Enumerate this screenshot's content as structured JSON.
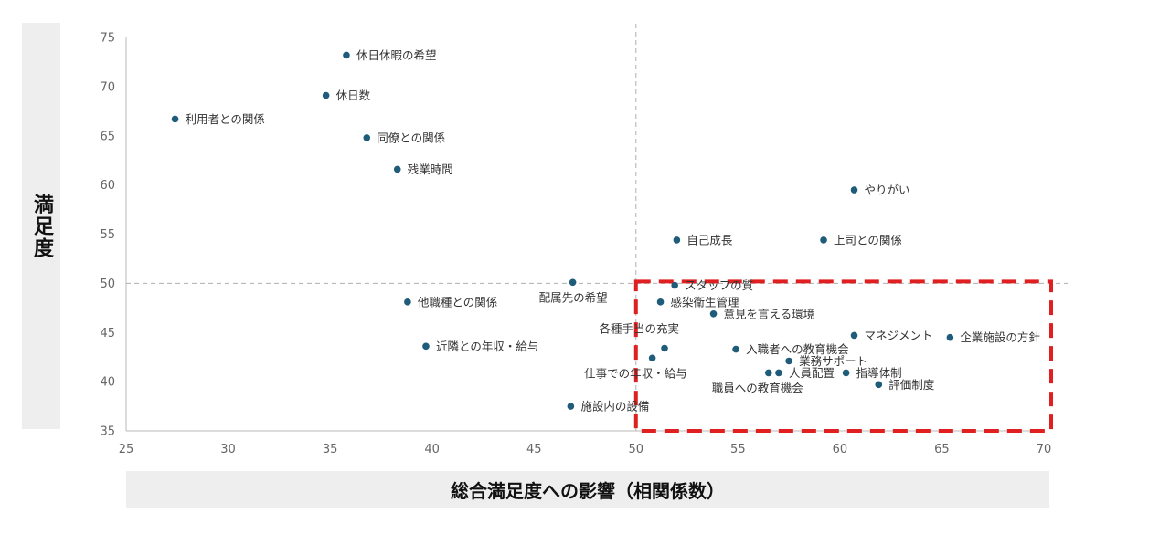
{
  "chart_data": {
    "type": "scatter",
    "title": "",
    "xlabel": "総合満足度への影響（相関係数）",
    "ylabel": "満足度",
    "xlim": [
      25,
      70
    ],
    "ylim": [
      35,
      75
    ],
    "xticks": [
      25,
      30,
      35,
      40,
      45,
      50,
      55,
      60,
      65,
      70
    ],
    "yticks": [
      35,
      40,
      45,
      50,
      55,
      60,
      65,
      70,
      75
    ],
    "reference_lines": {
      "x": 50,
      "y": 50
    },
    "highlight_region": {
      "x": [
        50,
        70
      ],
      "y": [
        35,
        50
      ],
      "color": "#e02020"
    },
    "marker_color": "#1f5c7a",
    "points": [
      {
        "label": "休日休暇の希望",
        "x": 35.8,
        "y": 73.2,
        "anchor": "right"
      },
      {
        "label": "休日数",
        "x": 34.8,
        "y": 69.1,
        "anchor": "right"
      },
      {
        "label": "利用者との関係",
        "x": 27.4,
        "y": 66.7,
        "anchor": "right"
      },
      {
        "label": "同僚との関係",
        "x": 36.8,
        "y": 64.8,
        "anchor": "right"
      },
      {
        "label": "残業時間",
        "x": 38.3,
        "y": 61.6,
        "anchor": "right"
      },
      {
        "label": "やりがい",
        "x": 60.7,
        "y": 59.5,
        "anchor": "right"
      },
      {
        "label": "自己成長",
        "x": 52.0,
        "y": 54.4,
        "anchor": "right"
      },
      {
        "label": "上司との関係",
        "x": 59.2,
        "y": 54.4,
        "anchor": "right"
      },
      {
        "label": "配属先の希望",
        "x": 46.9,
        "y": 50.1,
        "anchor": "below-left"
      },
      {
        "label": "スタッフの質",
        "x": 51.9,
        "y": 49.8,
        "anchor": "right"
      },
      {
        "label": "他職種との関係",
        "x": 38.8,
        "y": 48.1,
        "anchor": "right"
      },
      {
        "label": "感染衛生管理",
        "x": 51.2,
        "y": 48.1,
        "anchor": "right"
      },
      {
        "label": "意見を言える環境",
        "x": 53.8,
        "y": 46.9,
        "anchor": "right"
      },
      {
        "label": "各種手当の充実",
        "x": 51.4,
        "y": 43.4,
        "anchor": "above-left"
      },
      {
        "label": "マネジメント",
        "x": 60.7,
        "y": 44.7,
        "anchor": "right"
      },
      {
        "label": "企業施設の方針",
        "x": 65.4,
        "y": 44.5,
        "anchor": "right"
      },
      {
        "label": "近隣との年収・給与",
        "x": 39.7,
        "y": 43.6,
        "anchor": "right"
      },
      {
        "label": "入職者への教育機会",
        "x": 54.9,
        "y": 43.3,
        "anchor": "right"
      },
      {
        "label": "仕事での年収・給与",
        "x": 50.8,
        "y": 42.4,
        "anchor": "below-left"
      },
      {
        "label": "業務サポート",
        "x": 57.5,
        "y": 42.1,
        "anchor": "right"
      },
      {
        "label": "職員への教育機会",
        "x": 56.5,
        "y": 40.9,
        "anchor": "below-left"
      },
      {
        "label": "人員配置",
        "x": 57.0,
        "y": 40.9,
        "anchor": "right"
      },
      {
        "label": "指導体制",
        "x": 60.3,
        "y": 40.9,
        "anchor": "right"
      },
      {
        "label": "評価制度",
        "x": 61.9,
        "y": 39.7,
        "anchor": "right"
      },
      {
        "label": "施設内の設備",
        "x": 46.8,
        "y": 37.5,
        "anchor": "right"
      }
    ]
  }
}
